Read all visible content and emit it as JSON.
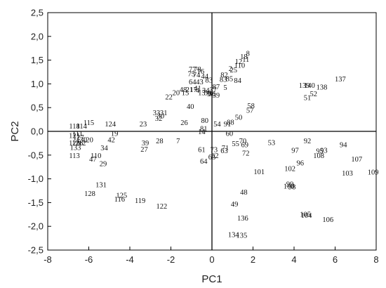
{
  "chart_data": {
    "type": "scatter",
    "xlabel": "PC1",
    "ylabel": "PC2",
    "xlim": [
      -8,
      8
    ],
    "ylim": [
      -2.5,
      2.5
    ],
    "xticks": [
      "-8",
      "-6",
      "-4",
      "-2",
      "0",
      "2",
      "4",
      "6",
      "8"
    ],
    "yticks": [
      "-2,5",
      "-2,0",
      "-1,5",
      "-1,0",
      "-0,5",
      "0,0",
      "0,5",
      "1,0",
      "1,5",
      "2,0",
      "2,5"
    ],
    "reference_lines": {
      "x": 0,
      "y": 0
    },
    "points": [
      {
        "label": "8",
        "x": 1.75,
        "y": 1.65
      },
      {
        "label": "18",
        "x": 1.55,
        "y": 1.58
      },
      {
        "label": "11",
        "x": 1.65,
        "y": 1.52
      },
      {
        "label": "12",
        "x": 1.3,
        "y": 1.48
      },
      {
        "label": "110",
        "x": 1.35,
        "y": 1.4
      },
      {
        "label": "2",
        "x": 0.9,
        "y": 1.33
      },
      {
        "label": "25",
        "x": 1.05,
        "y": 1.3
      },
      {
        "label": "82",
        "x": 0.6,
        "y": 1.2
      },
      {
        "label": "83",
        "x": 0.55,
        "y": 1.1
      },
      {
        "label": "85",
        "x": 0.85,
        "y": 1.12
      },
      {
        "label": "84",
        "x": 1.25,
        "y": 1.08
      },
      {
        "label": "5",
        "x": 0.65,
        "y": 0.93
      },
      {
        "label": "78",
        "x": -0.7,
        "y": 1.32
      },
      {
        "label": "77",
        "x": -0.95,
        "y": 1.32
      },
      {
        "label": "76",
        "x": -0.55,
        "y": 1.27
      },
      {
        "label": "75",
        "x": -1.0,
        "y": 1.22
      },
      {
        "label": "74",
        "x": -0.75,
        "y": 1.2
      },
      {
        "label": "44",
        "x": -0.35,
        "y": 1.17
      },
      {
        "label": "83",
        "x": -0.15,
        "y": 1.09
      },
      {
        "label": "64",
        "x": -0.95,
        "y": 1.05
      },
      {
        "label": "43",
        "x": -0.6,
        "y": 1.05
      },
      {
        "label": "87",
        "x": 0.2,
        "y": 0.95
      },
      {
        "label": "41",
        "x": -0.7,
        "y": 0.92
      },
      {
        "label": "48",
        "x": -1.4,
        "y": 0.89
      },
      {
        "label": "21",
        "x": -1.1,
        "y": 0.89
      },
      {
        "label": "17",
        "x": -0.9,
        "y": 0.89
      },
      {
        "label": "4",
        "x": -0.7,
        "y": 0.87
      },
      {
        "label": "34",
        "x": -0.3,
        "y": 0.87
      },
      {
        "label": "37",
        "x": 0.05,
        "y": 0.88
      },
      {
        "label": "20",
        "x": -1.75,
        "y": 0.82
      },
      {
        "label": "15",
        "x": -1.3,
        "y": 0.82
      },
      {
        "label": "13",
        "x": -0.5,
        "y": 0.82
      },
      {
        "label": "38",
        "x": -0.2,
        "y": 0.82
      },
      {
        "label": "36",
        "x": 0.0,
        "y": 0.8
      },
      {
        "label": "9",
        "x": -0.15,
        "y": 0.8
      },
      {
        "label": "39",
        "x": 0.2,
        "y": 0.77
      },
      {
        "label": "22",
        "x": -2.1,
        "y": 0.73
      },
      {
        "label": "40",
        "x": -1.05,
        "y": 0.53
      },
      {
        "label": "33",
        "x": -2.7,
        "y": 0.4
      },
      {
        "label": "31",
        "x": -2.35,
        "y": 0.4
      },
      {
        "label": "30",
        "x": -2.5,
        "y": 0.33
      },
      {
        "label": "32",
        "x": -2.6,
        "y": 0.28
      },
      {
        "label": "23",
        "x": -3.35,
        "y": 0.16
      },
      {
        "label": "26",
        "x": -1.35,
        "y": 0.19
      },
      {
        "label": "80",
        "x": -0.35,
        "y": 0.24
      },
      {
        "label": "54",
        "x": 0.25,
        "y": 0.16
      },
      {
        "label": "91",
        "x": 0.75,
        "y": 0.16
      },
      {
        "label": "88",
        "x": 0.9,
        "y": 0.2
      },
      {
        "label": "50",
        "x": 1.3,
        "y": 0.3
      },
      {
        "label": "58",
        "x": 1.9,
        "y": 0.55
      },
      {
        "label": "57",
        "x": 1.85,
        "y": 0.45
      },
      {
        "label": "81",
        "x": -0.4,
        "y": 0.07
      },
      {
        "label": "14",
        "x": -0.5,
        "y": 0.0
      },
      {
        "label": "60",
        "x": 0.85,
        "y": -0.04
      },
      {
        "label": "115",
        "x": -6.0,
        "y": 0.19
      },
      {
        "label": "124",
        "x": -4.95,
        "y": 0.16
      },
      {
        "label": "114",
        "x": -6.35,
        "y": 0.12
      },
      {
        "label": "118",
        "x": -6.7,
        "y": 0.12
      },
      {
        "label": "19",
        "x": -4.75,
        "y": -0.04
      },
      {
        "label": "111",
        "x": -6.55,
        "y": -0.04
      },
      {
        "label": "121",
        "x": -6.7,
        "y": -0.08
      },
      {
        "label": "127",
        "x": -6.5,
        "y": -0.12
      },
      {
        "label": "130",
        "x": -6.35,
        "y": -0.17
      },
      {
        "label": "112",
        "x": -6.4,
        "y": -0.24
      },
      {
        "label": "126",
        "x": -6.55,
        "y": -0.24
      },
      {
        "label": "123",
        "x": -6.7,
        "y": -0.24
      },
      {
        "label": "120",
        "x": -6.05,
        "y": -0.17
      },
      {
        "label": "42",
        "x": -4.9,
        "y": -0.17
      },
      {
        "label": "133",
        "x": -6.65,
        "y": -0.33
      },
      {
        "label": "34",
        "x": -5.25,
        "y": -0.34
      },
      {
        "label": "39",
        "x": -3.25,
        "y": -0.24
      },
      {
        "label": "28",
        "x": -2.55,
        "y": -0.19
      },
      {
        "label": "7",
        "x": -1.65,
        "y": -0.19
      },
      {
        "label": "27",
        "x": -3.3,
        "y": -0.37
      },
      {
        "label": "113",
        "x": -6.7,
        "y": -0.5
      },
      {
        "label": "110",
        "x": -5.65,
        "y": -0.5
      },
      {
        "label": "47",
        "x": -5.8,
        "y": -0.58
      },
      {
        "label": "29",
        "x": -5.3,
        "y": -0.67
      },
      {
        "label": "61",
        "x": -0.5,
        "y": -0.38
      },
      {
        "label": "73",
        "x": 0.1,
        "y": -0.38
      },
      {
        "label": "71",
        "x": 0.65,
        "y": -0.34
      },
      {
        "label": "63",
        "x": 0.6,
        "y": -0.4
      },
      {
        "label": "55",
        "x": 1.15,
        "y": -0.25
      },
      {
        "label": "70",
        "x": 1.5,
        "y": -0.19
      },
      {
        "label": "69",
        "x": 1.6,
        "y": -0.27
      },
      {
        "label": "62",
        "x": 0.15,
        "y": -0.5
      },
      {
        "label": "65",
        "x": 0.0,
        "y": -0.53
      },
      {
        "label": "64",
        "x": -0.4,
        "y": -0.62
      },
      {
        "label": "72",
        "x": 1.65,
        "y": -0.45
      },
      {
        "label": "53",
        "x": 2.9,
        "y": -0.23
      },
      {
        "label": "101",
        "x": 2.3,
        "y": -0.84
      },
      {
        "label": "92",
        "x": 4.65,
        "y": -0.19
      },
      {
        "label": "97",
        "x": 4.05,
        "y": -0.39
      },
      {
        "label": "95",
        "x": 5.25,
        "y": -0.41
      },
      {
        "label": "93",
        "x": 5.45,
        "y": -0.39
      },
      {
        "label": "108",
        "x": 5.2,
        "y": -0.5
      },
      {
        "label": "94",
        "x": 6.4,
        "y": -0.27
      },
      {
        "label": "96",
        "x": 4.3,
        "y": -0.66
      },
      {
        "label": "102",
        "x": 3.8,
        "y": -0.78
      },
      {
        "label": "107",
        "x": 7.05,
        "y": -0.58
      },
      {
        "label": "103",
        "x": 6.6,
        "y": -0.87
      },
      {
        "label": "109",
        "x": 7.85,
        "y": -0.85
      },
      {
        "label": "99",
        "x": 3.8,
        "y": -1.1
      },
      {
        "label": "100",
        "x": 3.75,
        "y": -1.15
      },
      {
        "label": "98",
        "x": 3.9,
        "y": -1.16
      },
      {
        "label": "48",
        "x": 1.55,
        "y": -1.27
      },
      {
        "label": "49",
        "x": 1.1,
        "y": -1.52
      },
      {
        "label": "136",
        "x": 1.5,
        "y": -1.82
      },
      {
        "label": "134",
        "x": 1.05,
        "y": -2.17
      },
      {
        "label": "135",
        "x": 1.45,
        "y": -2.18
      },
      {
        "label": "105",
        "x": 4.55,
        "y": -1.74
      },
      {
        "label": "104",
        "x": 4.6,
        "y": -1.76
      },
      {
        "label": "106",
        "x": 5.65,
        "y": -1.85
      },
      {
        "label": "131",
        "x": -5.4,
        "y": -1.12
      },
      {
        "label": "128",
        "x": -5.95,
        "y": -1.3
      },
      {
        "label": "125",
        "x": -4.4,
        "y": -1.34
      },
      {
        "label": "116",
        "x": -4.5,
        "y": -1.42
      },
      {
        "label": "119",
        "x": -3.5,
        "y": -1.45
      },
      {
        "label": "122",
        "x": -2.45,
        "y": -1.57
      },
      {
        "label": "139",
        "x": 4.5,
        "y": 0.98
      },
      {
        "label": "140",
        "x": 4.75,
        "y": 0.98
      },
      {
        "label": "138",
        "x": 5.35,
        "y": 0.94
      },
      {
        "label": "52",
        "x": 4.95,
        "y": 0.8
      },
      {
        "label": "51",
        "x": 4.65,
        "y": 0.72
      },
      {
        "label": "137",
        "x": 6.25,
        "y": 1.11
      }
    ]
  }
}
